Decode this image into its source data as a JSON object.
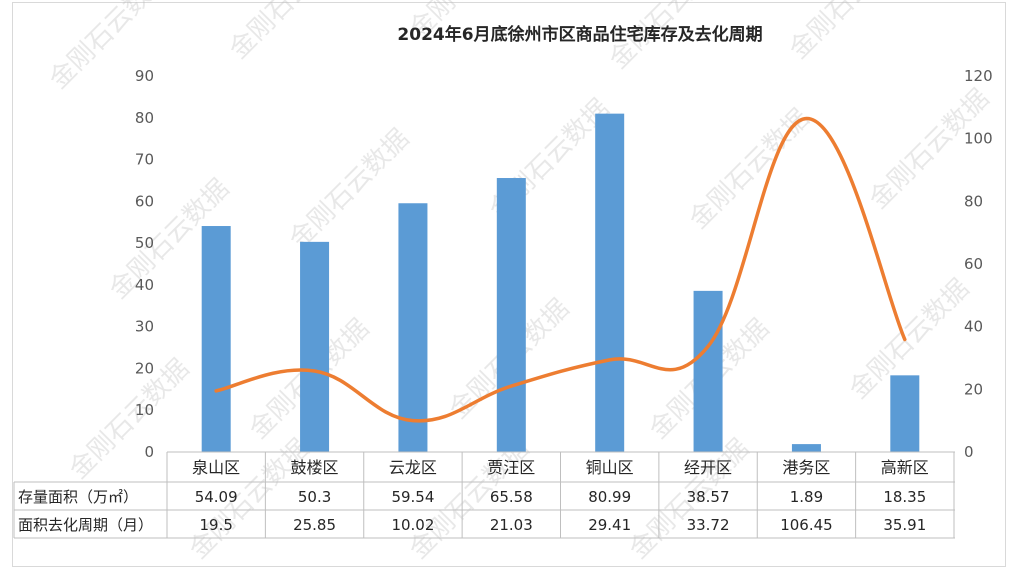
{
  "chart_data": {
    "type": "bar",
    "title": "2024年6月底徐州市区商品住宅库存及去化周期",
    "categories": [
      "泉山区",
      "鼓楼区",
      "云龙区",
      "贾汪区",
      "铜山区",
      "经开区",
      "港务区",
      "高新区"
    ],
    "series": [
      {
        "name": "存量面积（万㎡）",
        "type": "bar",
        "axis": "left",
        "color": "#5b9bd5",
        "values": [
          54.09,
          50.3,
          59.54,
          65.58,
          80.99,
          38.57,
          1.89,
          18.35
        ],
        "labels": [
          "54.09",
          "50.3",
          "59.54",
          "65.58",
          "80.99",
          "38.57",
          "1.89",
          "18.35"
        ]
      },
      {
        "name": "面积去化周期（月）",
        "type": "line",
        "axis": "right",
        "color": "#ed7d31",
        "values": [
          19.5,
          25.85,
          10.02,
          21.03,
          29.41,
          33.72,
          106.45,
          35.91
        ],
        "labels": [
          "19.5",
          "25.85",
          "10.02",
          "21.03",
          "29.41",
          "33.72",
          "106.45",
          "35.91"
        ]
      }
    ],
    "y_left": {
      "min": 0,
      "max": 90,
      "step": 10,
      "ticks": [
        "0",
        "10",
        "20",
        "30",
        "40",
        "50",
        "60",
        "70",
        "80",
        "90"
      ]
    },
    "y_right": {
      "min": 0,
      "max": 120,
      "step": 20,
      "ticks": [
        "0",
        "20",
        "40",
        "60",
        "80",
        "100",
        "120"
      ]
    },
    "grid": false,
    "legend": "data-table",
    "watermark": "金刚石云数据"
  }
}
